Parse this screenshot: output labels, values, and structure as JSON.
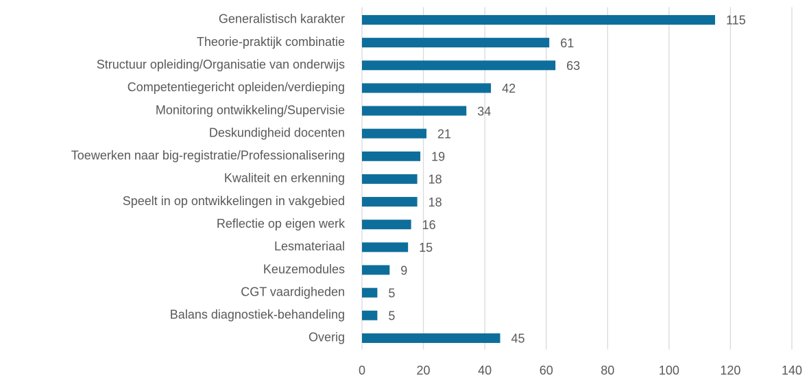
{
  "chart_data": {
    "type": "barh",
    "categories": [
      "Generalistisch karakter",
      "Theorie-praktijk combinatie",
      "Structuur opleiding/Organisatie van onderwijs",
      "Competentiegericht opleiden/verdieping",
      "Monitoring ontwikkeling/Supervisie",
      "Deskundigheid docenten",
      "Toewerken naar big-registratie/Professionalisering",
      "Kwaliteit en erkenning",
      "Speelt in op ontwikkelingen in vakgebied",
      "Reflectie op eigen werk",
      "Lesmateriaal",
      "Keuzemodules",
      "CGT vaardigheden",
      "Balans diagnostiek-behandeling",
      "Overig"
    ],
    "values": [
      115,
      61,
      63,
      42,
      34,
      21,
      19,
      18,
      18,
      16,
      15,
      9,
      5,
      5,
      45
    ],
    "color": "#0e6e9b",
    "xlim": [
      0,
      140
    ],
    "xticks": [
      0,
      20,
      40,
      60,
      80,
      100,
      120,
      140
    ],
    "grid": true
  }
}
